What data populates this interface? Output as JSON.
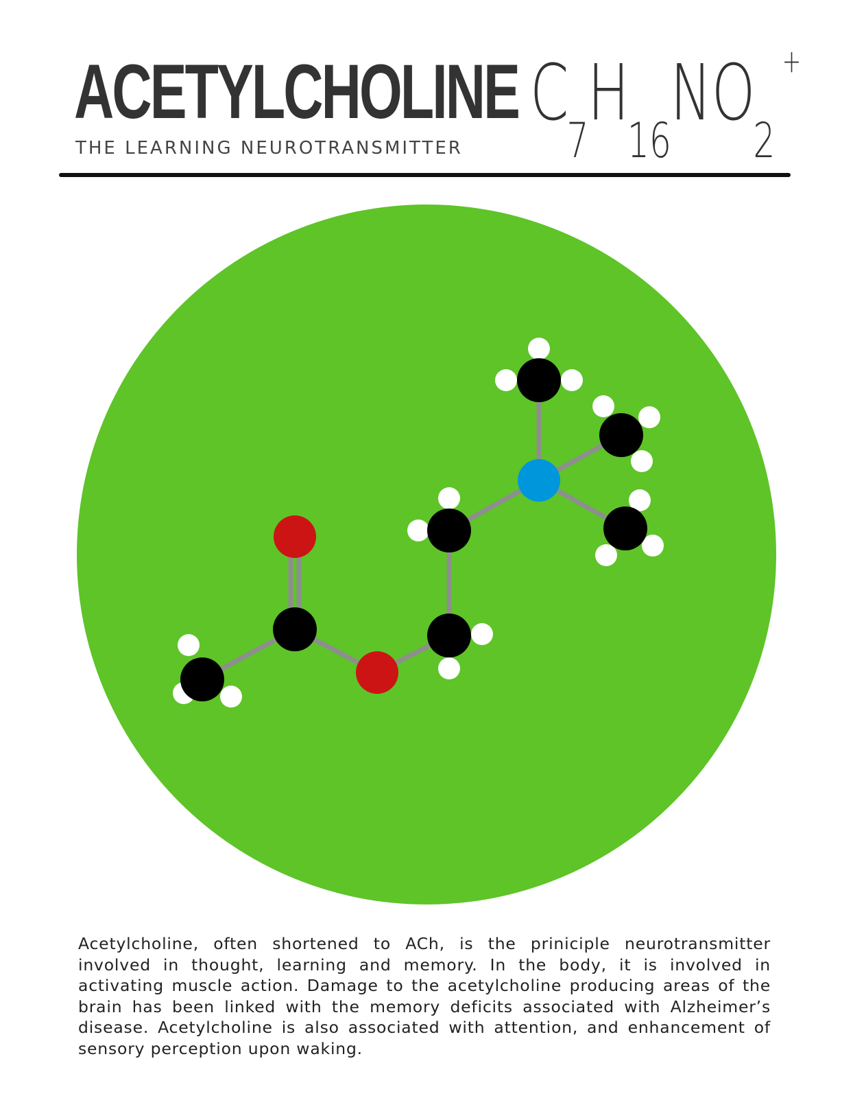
{
  "header": {
    "title": "ACETYLCHOLINE",
    "subtitle": "THE LEARNING NEUROTRANSMITTER",
    "formula": {
      "parts": [
        {
          "element": "C",
          "count": "7"
        },
        {
          "element": "H",
          "count": "16"
        },
        {
          "element": "N",
          "count": ""
        },
        {
          "element": "O",
          "count": "2"
        }
      ],
      "charge": "+"
    }
  },
  "colors": {
    "circle": "#5ec428",
    "bond": "#8e8e8e",
    "carbon": "#000000",
    "hydrogen": "#ffffff",
    "oxygen": "#cc1414",
    "nitrogen": "#0096dc"
  },
  "molecule": {
    "atom_types": [
      "C",
      "O",
      "N",
      "H"
    ],
    "icon": "molecule-ball-and-stick"
  },
  "description": "Acetylcholine, often shortened to ACh, is the priniciple neurotransmitter involved in thought, learning and memory. In the body, it is involved in activating muscle action. Damage to the acetylcholine producing areas of the brain has been linked with the memory deficits associated with Alzheimer’s disease. Acetylcholine is also associated with attention, and enhancement of sensory perception upon waking."
}
